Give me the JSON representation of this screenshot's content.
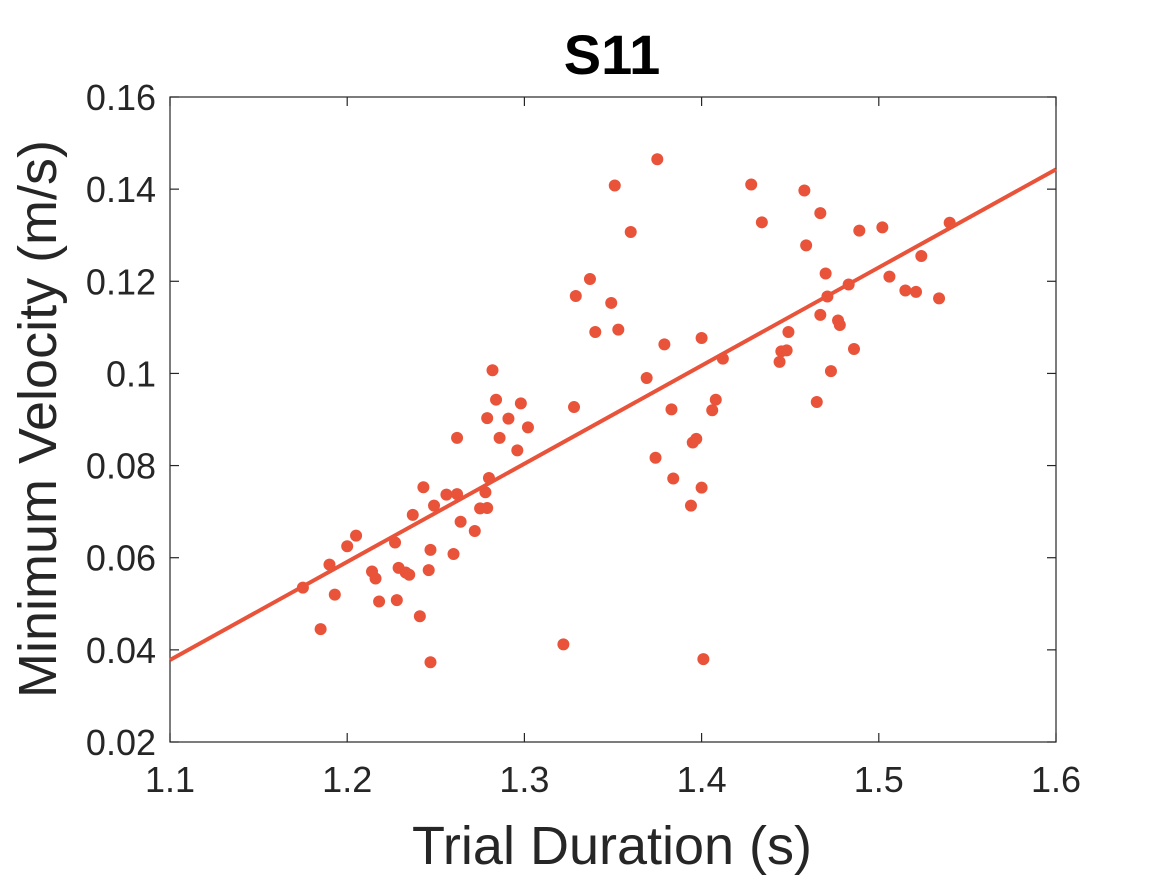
{
  "chart_data": {
    "type": "scatter",
    "title": "S11",
    "xlabel": "Trial Duration (s)",
    "ylabel": "Minimum Velocity (m/s)",
    "xlim": [
      1.1,
      1.6
    ],
    "ylim": [
      0.02,
      0.16
    ],
    "xticks": [
      1.1,
      1.2,
      1.3,
      1.4,
      1.5,
      1.6
    ],
    "yticks": [
      0.02,
      0.04,
      0.06,
      0.08,
      0.1,
      0.12,
      0.14,
      0.16
    ],
    "xtick_labels": [
      "1.1",
      "1.2",
      "1.3",
      "1.4",
      "1.5",
      "1.6"
    ],
    "ytick_labels": [
      "0.02",
      "0.04",
      "0.06",
      "0.08",
      "0.1",
      "0.12",
      "0.14",
      "0.16"
    ],
    "grid": false,
    "color": "#e8533a",
    "points": [
      [
        1.175,
        0.0535
      ],
      [
        1.185,
        0.0445
      ],
      [
        1.19,
        0.0585
      ],
      [
        1.193,
        0.052
      ],
      [
        1.2,
        0.0625
      ],
      [
        1.205,
        0.0648
      ],
      [
        1.214,
        0.057
      ],
      [
        1.216,
        0.0555
      ],
      [
        1.218,
        0.0505
      ],
      [
        1.227,
        0.0633
      ],
      [
        1.228,
        0.0508
      ],
      [
        1.229,
        0.0578
      ],
      [
        1.233,
        0.0568
      ],
      [
        1.235,
        0.0563
      ],
      [
        1.237,
        0.0693
      ],
      [
        1.241,
        0.0473
      ],
      [
        1.243,
        0.0753
      ],
      [
        1.246,
        0.0573
      ],
      [
        1.247,
        0.0617
      ],
      [
        1.247,
        0.0373
      ],
      [
        1.249,
        0.0713
      ],
      [
        1.256,
        0.0737
      ],
      [
        1.26,
        0.0608
      ],
      [
        1.262,
        0.0738
      ],
      [
        1.262,
        0.086
      ],
      [
        1.264,
        0.0678
      ],
      [
        1.272,
        0.0658
      ],
      [
        1.275,
        0.0707
      ],
      [
        1.278,
        0.0742
      ],
      [
        1.279,
        0.0903
      ],
      [
        1.279,
        0.0708
      ],
      [
        1.28,
        0.0773
      ],
      [
        1.282,
        0.1007
      ],
      [
        1.284,
        0.0943
      ],
      [
        1.286,
        0.086
      ],
      [
        1.291,
        0.0902
      ],
      [
        1.296,
        0.0833
      ],
      [
        1.298,
        0.0935
      ],
      [
        1.302,
        0.0883
      ],
      [
        1.322,
        0.0412
      ],
      [
        1.328,
        0.0927
      ],
      [
        1.329,
        0.1168
      ],
      [
        1.337,
        0.1205
      ],
      [
        1.34,
        0.109
      ],
      [
        1.349,
        0.1153
      ],
      [
        1.351,
        0.1408
      ],
      [
        1.353,
        0.1095
      ],
      [
        1.36,
        0.1307
      ],
      [
        1.369,
        0.099
      ],
      [
        1.374,
        0.0817
      ],
      [
        1.375,
        0.1465
      ],
      [
        1.379,
        0.1063
      ],
      [
        1.383,
        0.0922
      ],
      [
        1.384,
        0.0772
      ],
      [
        1.394,
        0.0713
      ],
      [
        1.395,
        0.085
      ],
      [
        1.397,
        0.0858
      ],
      [
        1.4,
        0.0752
      ],
      [
        1.4,
        0.1077
      ],
      [
        1.401,
        0.038
      ],
      [
        1.406,
        0.092
      ],
      [
        1.408,
        0.0943
      ],
      [
        1.412,
        0.1032
      ],
      [
        1.428,
        0.141
      ],
      [
        1.434,
        0.1328
      ],
      [
        1.444,
        0.1025
      ],
      [
        1.445,
        0.1048
      ],
      [
        1.448,
        0.105
      ],
      [
        1.449,
        0.109
      ],
      [
        1.458,
        0.1397
      ],
      [
        1.459,
        0.1278
      ],
      [
        1.465,
        0.0938
      ],
      [
        1.467,
        0.1348
      ],
      [
        1.467,
        0.1127
      ],
      [
        1.47,
        0.1217
      ],
      [
        1.471,
        0.1167
      ],
      [
        1.473,
        0.1005
      ],
      [
        1.477,
        0.1115
      ],
      [
        1.478,
        0.1105
      ],
      [
        1.483,
        0.1193
      ],
      [
        1.486,
        0.1053
      ],
      [
        1.489,
        0.131
      ],
      [
        1.502,
        0.1317
      ],
      [
        1.506,
        0.121
      ],
      [
        1.515,
        0.118
      ],
      [
        1.521,
        0.1177
      ],
      [
        1.524,
        0.1255
      ],
      [
        1.534,
        0.1163
      ],
      [
        1.54,
        0.1327
      ]
    ],
    "fit_line": {
      "x": [
        1.1,
        1.6
      ],
      "y": [
        0.0378,
        0.1443
      ]
    }
  }
}
